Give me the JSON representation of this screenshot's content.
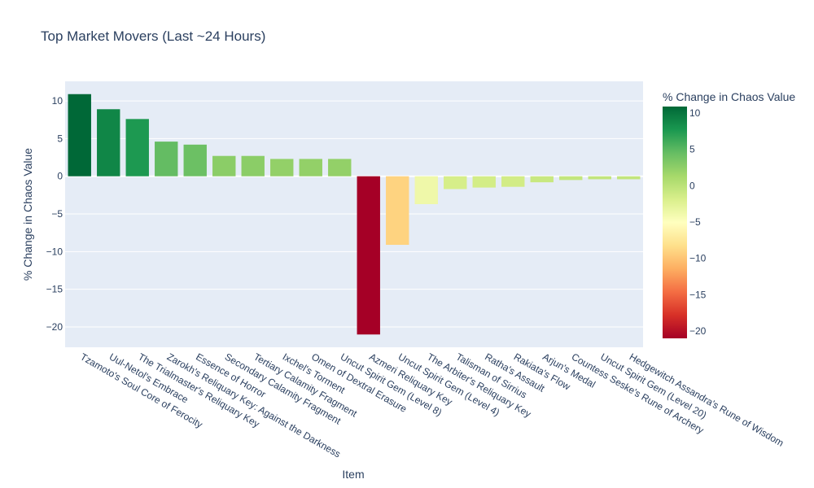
{
  "chart_data": {
    "type": "bar",
    "title": "Top Market Movers (Last ~24 Hours)",
    "xlabel": "Item",
    "ylabel": "% Change in Chaos Value",
    "colorbar_title": "% Change in Chaos Value",
    "categories": [
      "Tzamoto's Soul Core of Ferocity",
      "Uul-Netol's Embrace",
      "The Trialmaster's Reliquary Key",
      "Zarokh's Reliquary Key: Against the Darkness",
      "Essence of Horror",
      "Secondary Calamity Fragment",
      "Tertiary Calamity Fragment",
      "Ixchel's Torment",
      "Omen of Dextral Erasure",
      "Uncut Spirit Gem (Level 8)",
      "Azmeri Reliquary Key",
      "Uncut Spirit Gem (Level 4)",
      "The Arbiter's Reliquary Key",
      "Talisman of Sirrius",
      "Ratha's Assault",
      "Rakiata's Flow",
      "Arjun's Medal",
      "Countess Seske's Rune of Archery",
      "Uncut Spirit Gem (Level 20)",
      "Hedgewitch Assandra's Rune of Wisdom"
    ],
    "values": [
      10.9,
      8.9,
      7.6,
      4.6,
      4.2,
      2.7,
      2.7,
      2.3,
      2.3,
      2.3,
      -21.0,
      -9.1,
      -3.7,
      -1.7,
      -1.5,
      -1.4,
      -0.8,
      -0.5,
      -0.4,
      -0.4
    ],
    "ylim": [
      -22.7,
      12.6
    ],
    "yticks": [
      10,
      5,
      0,
      -5,
      -10,
      -15,
      -20
    ],
    "colorbar_ticks": [
      10,
      5,
      0,
      -5,
      -10,
      -15,
      -20
    ],
    "color_range": [
      -21.0,
      10.9
    ],
    "colorscale": [
      "#a50026",
      "#d73027",
      "#f46d43",
      "#fdae61",
      "#fee08b",
      "#ffffbf",
      "#d9ef8b",
      "#a6d96a",
      "#66bd63",
      "#1a9850",
      "#006837"
    ],
    "grid": true,
    "legend": "colorbar right"
  }
}
